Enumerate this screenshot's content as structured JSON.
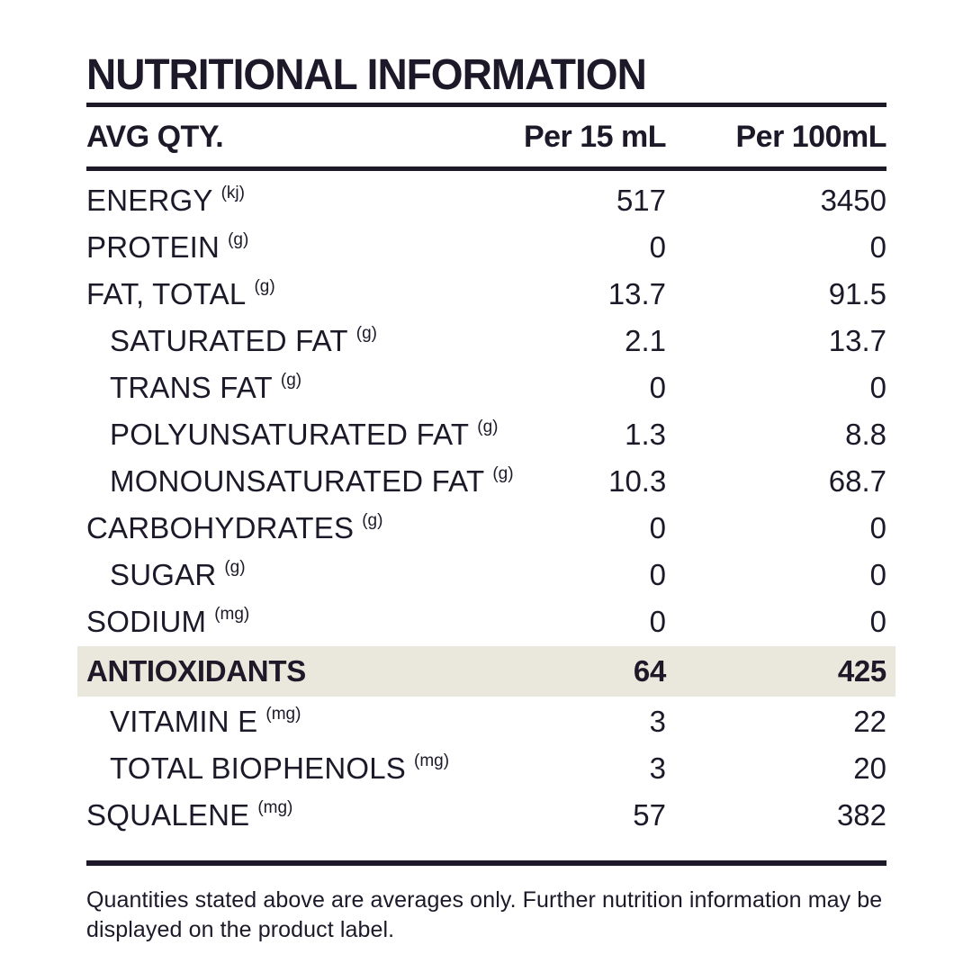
{
  "page": {
    "title": "NUTRITIONAL INFORMATION",
    "footer_note": "Quantities stated above are averages only. Further nutrition information may be displayed on the product label."
  },
  "table": {
    "columns": {
      "label": "AVG QTY.",
      "per15": "Per 15 mL",
      "per100": "Per 100mL"
    },
    "rows": [
      {
        "label": "ENERGY",
        "unit": "(kj)",
        "indent": false,
        "highlight": false,
        "per15": "517",
        "per100": "3450"
      },
      {
        "label": "PROTEIN",
        "unit": "(g)",
        "indent": false,
        "highlight": false,
        "per15": "0",
        "per100": "0"
      },
      {
        "label": "FAT, TOTAL",
        "unit": "(g)",
        "indent": false,
        "highlight": false,
        "per15": "13.7",
        "per100": "91.5"
      },
      {
        "label": "SATURATED FAT",
        "unit": "(g)",
        "indent": true,
        "highlight": false,
        "per15": "2.1",
        "per100": "13.7"
      },
      {
        "label": "TRANS FAT",
        "unit": "(g)",
        "indent": true,
        "highlight": false,
        "per15": "0",
        "per100": "0"
      },
      {
        "label": "POLYUNSATURATED FAT",
        "unit": "(g)",
        "indent": true,
        "highlight": false,
        "per15": "1.3",
        "per100": "8.8"
      },
      {
        "label": "MONOUNSATURATED FAT",
        "unit": "(g)",
        "indent": true,
        "highlight": false,
        "per15": "10.3",
        "per100": "68.7"
      },
      {
        "label": "CARBOHYDRATES",
        "unit": "(g)",
        "indent": false,
        "highlight": false,
        "per15": "0",
        "per100": "0"
      },
      {
        "label": "SUGAR",
        "unit": "(g)",
        "indent": true,
        "highlight": false,
        "per15": "0",
        "per100": "0"
      },
      {
        "label": "SODIUM",
        "unit": "(mg)",
        "indent": false,
        "highlight": false,
        "per15": "0",
        "per100": "0"
      },
      {
        "label": "ANTIOXIDANTS",
        "unit": "",
        "indent": false,
        "highlight": true,
        "per15": "64",
        "per100": "425"
      },
      {
        "label": "VITAMIN E",
        "unit": "(mg)",
        "indent": true,
        "highlight": false,
        "per15": "3",
        "per100": "22"
      },
      {
        "label": "TOTAL BIOPHENOLS",
        "unit": "(mg)",
        "indent": true,
        "highlight": false,
        "per15": "3",
        "per100": "20"
      },
      {
        "label": "SQUALENE",
        "unit": "(mg)",
        "indent": false,
        "highlight": false,
        "per15": "57",
        "per100": "382"
      }
    ]
  },
  "colors": {
    "text": "#1d1929",
    "highlight_bg": "#eae7dc",
    "background": "#ffffff"
  }
}
